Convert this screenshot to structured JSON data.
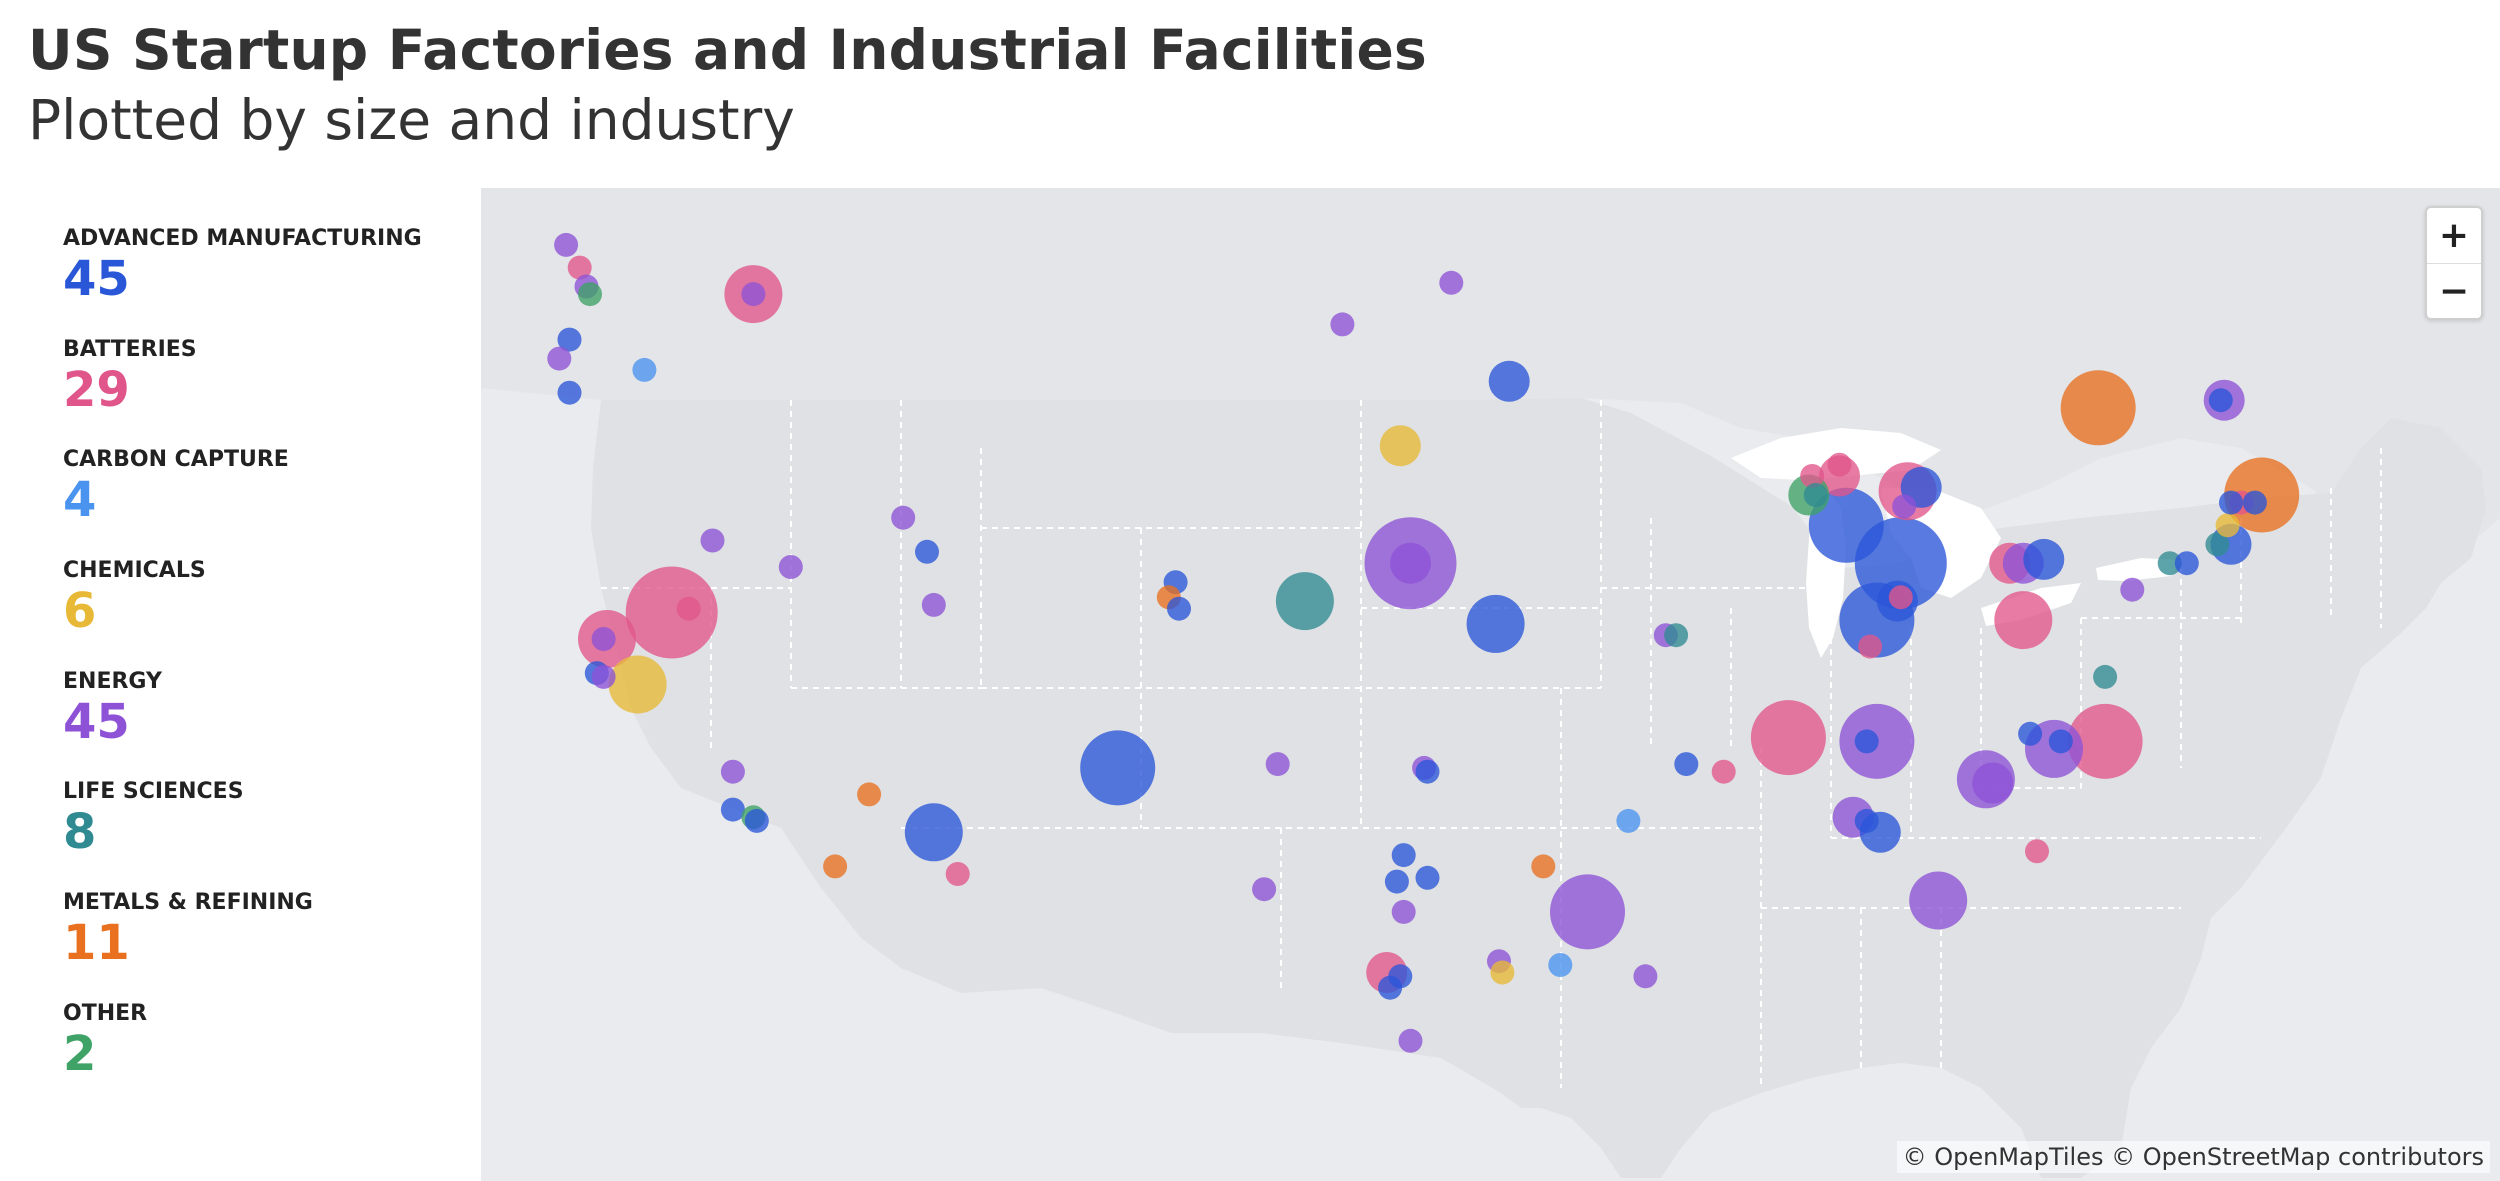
{
  "header": {
    "title": "US Startup Factories and Industrial Facilities",
    "subtitle": "Plotted by size and industry"
  },
  "legend": [
    {
      "label": "ADVANCED MANUFACTURING",
      "count": "45",
      "color": "#2a56d8"
    },
    {
      "label": "BATTERIES",
      "count": "29",
      "color": "#e1568a"
    },
    {
      "label": "CARBON CAPTURE",
      "count": "4",
      "color": "#4a94ef"
    },
    {
      "label": "CHEMICALS",
      "count": "6",
      "color": "#e8b937"
    },
    {
      "label": "ENERGY",
      "count": "45",
      "color": "#8d52d6"
    },
    {
      "label": "LIFE SCIENCES",
      "count": "8",
      "color": "#2f8a92"
    },
    {
      "label": "METALS & REFINING",
      "count": "11",
      "color": "#e8701f"
    },
    {
      "label": "OTHER",
      "count": "2",
      "color": "#3fa267"
    }
  ],
  "map": {
    "zoom_in": "+",
    "zoom_out": "−",
    "attribution": "© OpenMapTiles © OpenStreetMap contributors",
    "colors": {
      "land": "#dfe1e4",
      "water": "#ffffff",
      "background": "#e9ebee",
      "border": "#ffffff"
    }
  },
  "facilities": [
    {
      "lon": -122.8,
      "lat": 48.9,
      "category": "ENERGY",
      "size": 1
    },
    {
      "lon": -122.4,
      "lat": 48.3,
      "category": "BATTERIES",
      "size": 1
    },
    {
      "lon": -122.2,
      "lat": 47.8,
      "category": "ENERGY",
      "size": 1
    },
    {
      "lon": -122.1,
      "lat": 47.6,
      "category": "OTHER",
      "size": 1
    },
    {
      "lon": -117.3,
      "lat": 47.6,
      "category": "BATTERIES",
      "size": 3
    },
    {
      "lon": -117.3,
      "lat": 47.6,
      "category": "ENERGY",
      "size": 1
    },
    {
      "lon": -122.7,
      "lat": 46.4,
      "category": "ADVANCED MANUFACTURING",
      "size": 1
    },
    {
      "lon": -123.0,
      "lat": 45.9,
      "category": "ENERGY",
      "size": 1
    },
    {
      "lon": -120.5,
      "lat": 45.6,
      "category": "CARBON CAPTURE",
      "size": 1
    },
    {
      "lon": -122.7,
      "lat": 45.0,
      "category": "ADVANCED MANUFACTURING",
      "size": 1
    },
    {
      "lon": -118.5,
      "lat": 41.1,
      "category": "ENERGY",
      "size": 1
    },
    {
      "lon": -116.2,
      "lat": 40.4,
      "category": "ENERGY",
      "size": 1
    },
    {
      "lon": -119.7,
      "lat": 39.2,
      "category": "BATTERIES",
      "size": 5
    },
    {
      "lon": -119.2,
      "lat": 39.3,
      "category": "BATTERIES",
      "size": 1
    },
    {
      "lon": -121.6,
      "lat": 38.5,
      "category": "BATTERIES",
      "size": 3
    },
    {
      "lon": -121.7,
      "lat": 38.5,
      "category": "ENERGY",
      "size": 1
    },
    {
      "lon": -121.9,
      "lat": 37.6,
      "category": "ADVANCED MANUFACTURING",
      "size": 1
    },
    {
      "lon": -121.7,
      "lat": 37.5,
      "category": "ENERGY",
      "size": 1
    },
    {
      "lon": -120.7,
      "lat": 37.3,
      "category": "CHEMICALS",
      "size": 3
    },
    {
      "lon": -117.9,
      "lat": 35.0,
      "category": "ENERGY",
      "size": 1
    },
    {
      "lon": -117.9,
      "lat": 34.0,
      "category": "ADVANCED MANUFACTURING",
      "size": 1
    },
    {
      "lon": -117.3,
      "lat": 33.8,
      "category": "OTHER",
      "size": 1
    },
    {
      "lon": -117.2,
      "lat": 33.7,
      "category": "ADVANCED MANUFACTURING",
      "size": 1
    },
    {
      "lon": -112.9,
      "lat": 41.7,
      "category": "ENERGY",
      "size": 1
    },
    {
      "lon": -112.2,
      "lat": 40.8,
      "category": "ADVANCED MANUFACTURING",
      "size": 1
    },
    {
      "lon": -112.0,
      "lat": 39.4,
      "category": "ENERGY",
      "size": 1
    },
    {
      "lon": -113.9,
      "lat": 34.4,
      "category": "METALS & REFINING",
      "size": 1
    },
    {
      "lon": -112.0,
      "lat": 33.4,
      "category": "ADVANCED MANUFACTURING",
      "size": 3
    },
    {
      "lon": -111.3,
      "lat": 32.3,
      "category": "BATTERIES",
      "size": 1
    },
    {
      "lon": -114.9,
      "lat": 32.5,
      "category": "METALS & REFINING",
      "size": 1
    },
    {
      "lon": -104.9,
      "lat": 40.0,
      "category": "ADVANCED MANUFACTURING",
      "size": 1
    },
    {
      "lon": -105.1,
      "lat": 39.6,
      "category": "METALS & REFINING",
      "size": 1
    },
    {
      "lon": -104.8,
      "lat": 39.3,
      "category": "ADVANCED MANUFACTURING",
      "size": 1
    },
    {
      "lon": -106.6,
      "lat": 35.1,
      "category": "ADVANCED MANUFACTURING",
      "size": 4
    },
    {
      "lon": -101.9,
      "lat": 35.2,
      "category": "ENERGY",
      "size": 1
    },
    {
      "lon": -100.0,
      "lat": 46.8,
      "category": "ENERGY",
      "size": 1
    },
    {
      "lon": -96.8,
      "lat": 47.9,
      "category": "ENERGY",
      "size": 1
    },
    {
      "lon": -95.1,
      "lat": 45.3,
      "category": "ADVANCED MANUFACTURING",
      "size": 2
    },
    {
      "lon": -98.3,
      "lat": 43.6,
      "category": "CHEMICALS",
      "size": 2
    },
    {
      "lon": -101.1,
      "lat": 39.5,
      "category": "LIFE SCIENCES",
      "size": 3
    },
    {
      "lon": -98.0,
      "lat": 40.5,
      "category": "ENERGY",
      "size": 5
    },
    {
      "lon": -98.0,
      "lat": 40.5,
      "category": "ENERGY",
      "size": 2
    },
    {
      "lon": -95.5,
      "lat": 38.9,
      "category": "ADVANCED MANUFACTURING",
      "size": 3
    },
    {
      "lon": -97.6,
      "lat": 35.1,
      "category": "ENERGY",
      "size": 1
    },
    {
      "lon": -97.5,
      "lat": 35.0,
      "category": "ADVANCED MANUFACTURING",
      "size": 1
    },
    {
      "lon": -102.3,
      "lat": 31.9,
      "category": "ENERGY",
      "size": 1
    },
    {
      "lon": -98.2,
      "lat": 32.8,
      "category": "ADVANCED MANUFACTURING",
      "size": 1
    },
    {
      "lon": -98.4,
      "lat": 32.1,
      "category": "ADVANCED MANUFACTURING",
      "size": 1
    },
    {
      "lon": -97.5,
      "lat": 32.2,
      "category": "ADVANCED MANUFACTURING",
      "size": 1
    },
    {
      "lon": -98.2,
      "lat": 31.3,
      "category": "ENERGY",
      "size": 1
    },
    {
      "lon": -98.7,
      "lat": 29.7,
      "category": "BATTERIES",
      "size": 2
    },
    {
      "lon": -98.3,
      "lat": 29.6,
      "category": "ADVANCED MANUFACTURING",
      "size": 1
    },
    {
      "lon": -98.6,
      "lat": 29.3,
      "category": "ADVANCED MANUFACTURING",
      "size": 1
    },
    {
      "lon": -95.4,
      "lat": 30.0,
      "category": "ENERGY",
      "size": 1
    },
    {
      "lon": -95.3,
      "lat": 29.7,
      "category": "CHEMICALS",
      "size": 1
    },
    {
      "lon": -98.0,
      "lat": 27.9,
      "category": "ENERGY",
      "size": 1
    },
    {
      "lon": -94.1,
      "lat": 32.5,
      "category": "METALS & REFINING",
      "size": 1
    },
    {
      "lon": -92.8,
      "lat": 31.3,
      "category": "ENERGY",
      "size": 4
    },
    {
      "lon": -93.6,
      "lat": 29.9,
      "category": "CARBON CAPTURE",
      "size": 1
    },
    {
      "lon": -91.1,
      "lat": 29.6,
      "category": "ENERGY",
      "size": 1
    },
    {
      "lon": -91.6,
      "lat": 33.7,
      "category": "CARBON CAPTURE",
      "size": 1
    },
    {
      "lon": -90.5,
      "lat": 38.6,
      "category": "ENERGY",
      "size": 1
    },
    {
      "lon": -90.2,
      "lat": 38.6,
      "category": "LIFE SCIENCES",
      "size": 1
    },
    {
      "lon": -89.9,
      "lat": 35.2,
      "category": "ADVANCED MANUFACTURING",
      "size": 1
    },
    {
      "lon": -88.8,
      "lat": 35.0,
      "category": "BATTERIES",
      "size": 1
    },
    {
      "lon": -86.9,
      "lat": 35.9,
      "category": "BATTERIES",
      "size": 4
    },
    {
      "lon": -86.2,
      "lat": 42.8,
      "category": "BATTERIES",
      "size": 1
    },
    {
      "lon": -85.4,
      "lat": 43.1,
      "category": "BATTERIES",
      "size": 1
    },
    {
      "lon": -85.4,
      "lat": 42.8,
      "category": "BATTERIES",
      "size": 2
    },
    {
      "lon": -86.3,
      "lat": 42.3,
      "category": "OTHER",
      "size": 2
    },
    {
      "lon": -86.1,
      "lat": 42.3,
      "category": "LIFE SCIENCES",
      "size": 1
    },
    {
      "lon": -85.2,
      "lat": 41.5,
      "category": "ADVANCED MANUFACTURING",
      "size": 4
    },
    {
      "lon": -83.4,
      "lat": 42.4,
      "category": "BATTERIES",
      "size": 3
    },
    {
      "lon": -83.0,
      "lat": 42.5,
      "category": "ADVANCED MANUFACTURING",
      "size": 2
    },
    {
      "lon": -83.5,
      "lat": 42.0,
      "category": "ENERGY",
      "size": 1
    },
    {
      "lon": -83.6,
      "lat": 40.5,
      "category": "ADVANCED MANUFACTURING",
      "size": 5
    },
    {
      "lon": -83.6,
      "lat": 39.6,
      "category": "BATTERIES",
      "size": 1
    },
    {
      "lon": -84.3,
      "lat": 39.0,
      "category": "ADVANCED MANUFACTURING",
      "size": 4
    },
    {
      "lon": -84.5,
      "lat": 38.3,
      "category": "BATTERIES",
      "size": 1
    },
    {
      "lon": -83.7,
      "lat": 39.5,
      "category": "ADVANCED MANUFACTURING",
      "size": 2
    },
    {
      "lon": -80.4,
      "lat": 40.5,
      "category": "BATTERIES",
      "size": 2
    },
    {
      "lon": -80.0,
      "lat": 40.5,
      "category": "ENERGY",
      "size": 2
    },
    {
      "lon": -79.4,
      "lat": 40.6,
      "category": "ADVANCED MANUFACTURING",
      "size": 2
    },
    {
      "lon": -80.0,
      "lat": 39.0,
      "category": "BATTERIES",
      "size": 3
    },
    {
      "lon": -84.3,
      "lat": 35.8,
      "category": "ENERGY",
      "size": 4
    },
    {
      "lon": -84.6,
      "lat": 35.8,
      "category": "ADVANCED MANUFACTURING",
      "size": 1
    },
    {
      "lon": -85.0,
      "lat": 33.8,
      "category": "ENERGY",
      "size": 2
    },
    {
      "lon": -84.6,
      "lat": 33.7,
      "category": "ADVANCED MANUFACTURING",
      "size": 1
    },
    {
      "lon": -84.2,
      "lat": 33.4,
      "category": "ADVANCED MANUFACTURING",
      "size": 2
    },
    {
      "lon": -81.1,
      "lat": 34.8,
      "category": "ENERGY",
      "size": 3
    },
    {
      "lon": -80.9,
      "lat": 34.7,
      "category": "ENERGY",
      "size": 2
    },
    {
      "lon": -79.8,
      "lat": 36.0,
      "category": "ADVANCED MANUFACTURING",
      "size": 1
    },
    {
      "lon": -79.1,
      "lat": 35.6,
      "category": "ENERGY",
      "size": 3
    },
    {
      "lon": -78.9,
      "lat": 35.8,
      "category": "ADVANCED MANUFACTURING",
      "size": 1
    },
    {
      "lon": -77.6,
      "lat": 35.8,
      "category": "BATTERIES",
      "size": 4
    },
    {
      "lon": -77.6,
      "lat": 37.5,
      "category": "LIFE SCIENCES",
      "size": 1
    },
    {
      "lon": -82.5,
      "lat": 31.6,
      "category": "ENERGY",
      "size": 3
    },
    {
      "lon": -79.6,
      "lat": 32.9,
      "category": "BATTERIES",
      "size": 1
    },
    {
      "lon": -76.8,
      "lat": 39.8,
      "category": "ENERGY",
      "size": 1
    },
    {
      "lon": -75.7,
      "lat": 40.5,
      "category": "LIFE SCIENCES",
      "size": 1
    },
    {
      "lon": -75.2,
      "lat": 40.5,
      "category": "ADVANCED MANUFACTURING",
      "size": 1
    },
    {
      "lon": -74.3,
      "lat": 41.0,
      "category": "LIFE SCIENCES",
      "size": 1
    },
    {
      "lon": -73.9,
      "lat": 41.0,
      "category": "ADVANCED MANUFACTURING",
      "size": 2
    },
    {
      "lon": -74.0,
      "lat": 41.5,
      "category": "CHEMICALS",
      "size": 1
    },
    {
      "lon": -73.6,
      "lat": 42.1,
      "category": "BATTERIES",
      "size": 1
    },
    {
      "lon": -73.0,
      "lat": 42.3,
      "category": "METALS & REFINING",
      "size": 4
    },
    {
      "lon": -73.9,
      "lat": 42.1,
      "category": "ADVANCED MANUFACTURING",
      "size": 1
    },
    {
      "lon": -73.2,
      "lat": 42.1,
      "category": "ADVANCED MANUFACTURING",
      "size": 1
    },
    {
      "lon": -77.8,
      "lat": 44.6,
      "category": "METALS & REFINING",
      "size": 4
    },
    {
      "lon": -74.1,
      "lat": 44.8,
      "category": "ENERGY",
      "size": 2
    },
    {
      "lon": -74.2,
      "lat": 44.8,
      "category": "ADVANCED MANUFACTURING",
      "size": 1
    }
  ]
}
